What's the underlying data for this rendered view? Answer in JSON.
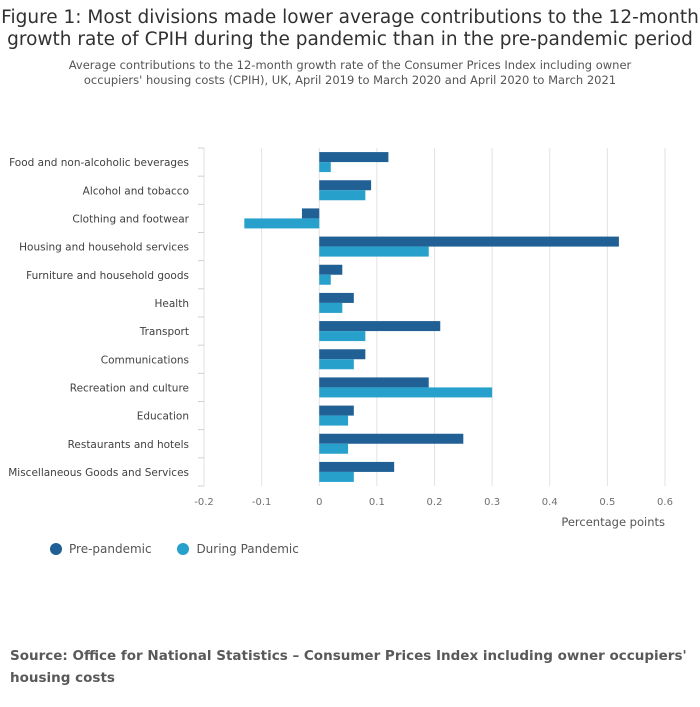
{
  "title": "Figure 1: Most divisions made lower average contributions to the 12-month growth rate of CPIH during the pandemic than in the pre-pandemic period",
  "subtitle": "Average contributions to the 12-month growth rate of the Consumer Prices Index including owner occupiers' housing costs (CPIH), UK, April 2019 to March 2020 and April 2020 to March 2021",
  "source": "Source: Office for National Statistics – Consumer Prices Index including owner occupiers' housing costs",
  "chart_data": {
    "type": "bar",
    "orientation": "horizontal",
    "categories": [
      "Food and non-alcoholic beverages",
      "Alcohol and tobacco",
      "Clothing and footwear",
      "Housing and household services",
      "Furniture and household goods",
      "Health",
      "Transport",
      "Communications",
      "Recreation and culture",
      "Education",
      "Restaurants and hotels",
      "Miscellaneous Goods and Services"
    ],
    "series": [
      {
        "name": "Pre-pandemic",
        "color": "#206095",
        "values": [
          0.12,
          0.09,
          -0.03,
          0.52,
          0.04,
          0.06,
          0.21,
          0.08,
          0.19,
          0.06,
          0.25,
          0.13
        ]
      },
      {
        "name": "During Pandemic",
        "color": "#27a0cc",
        "values": [
          0.02,
          0.08,
          -0.13,
          0.19,
          0.02,
          0.04,
          0.08,
          0.06,
          0.3,
          0.05,
          0.05,
          0.06
        ]
      }
    ],
    "xlim": [
      -0.2,
      0.6
    ],
    "xticks": [
      "-0.2",
      "-0.1",
      "0",
      "0.1",
      "0.2",
      "0.3",
      "0.4",
      "0.5",
      "0.6"
    ],
    "xlabel": "Percentage points",
    "ylabel": "",
    "grid": true,
    "legend_position": "bottom-left"
  }
}
